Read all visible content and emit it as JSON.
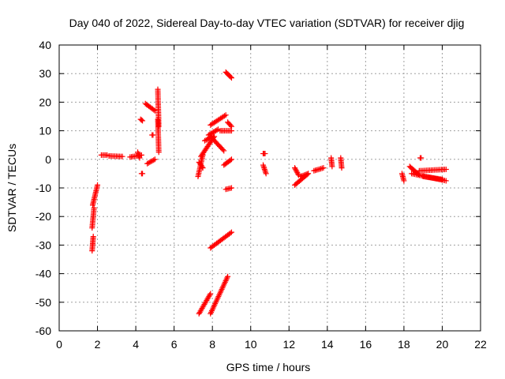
{
  "chart_data": {
    "type": "scatter",
    "title": "Day 040 of 2022, Sidereal Day-to-day VTEC variation (SDTVAR) for receiver djig",
    "xlabel": "GPS time / hours",
    "ylabel": "SDTVAR / TECUs",
    "xlim": [
      0,
      22
    ],
    "ylim": [
      -60,
      40
    ],
    "xticks": [
      0,
      2,
      4,
      6,
      8,
      10,
      12,
      14,
      16,
      18,
      20,
      22
    ],
    "yticks": [
      -60,
      -50,
      -40,
      -30,
      -20,
      -10,
      0,
      10,
      20,
      30,
      40
    ],
    "grid": true,
    "marker": "+",
    "color": "#ff0000",
    "series": [
      {
        "name": "SDTVAR",
        "segments": [
          {
            "x": [
              1.75,
              2.0
            ],
            "y": [
              -16,
              -9
            ]
          },
          {
            "x": [
              1.72,
              1.78
            ],
            "y": [
              -32,
              -27
            ]
          },
          {
            "x": [
              1.72,
              1.82
            ],
            "y": [
              -24,
              -17
            ]
          },
          {
            "x": [
              2.2,
              2.5
            ],
            "y": [
              1.5,
              1.5
            ]
          },
          {
            "x": [
              2.6,
              3.3
            ],
            "y": [
              1.2,
              1.0
            ]
          },
          {
            "x": [
              3.7,
              4.3
            ],
            "y": [
              0.8,
              1.5
            ]
          },
          {
            "x": [
              4.1,
              4.2
            ],
            "y": [
              2.5,
              0.5
            ]
          },
          {
            "x": [
              4.25,
              4.35
            ],
            "y": [
              14,
              13.5
            ]
          },
          {
            "x": [
              4.3,
              4.35
            ],
            "y": [
              -5,
              -5
            ]
          },
          {
            "x": [
              4.5,
              5.0
            ],
            "y": [
              19.5,
              17
            ]
          },
          {
            "x": [
              4.6,
              5.0
            ],
            "y": [
              -1.5,
              0
            ]
          },
          {
            "x": [
              4.85,
              4.9
            ],
            "y": [
              8.5,
              8.5
            ]
          },
          {
            "x": [
              5.15,
              5.2
            ],
            "y": [
              24.5,
              11.5
            ]
          },
          {
            "x": [
              5.15,
              5.2
            ],
            "y": [
              14,
              2.5
            ]
          },
          {
            "x": [
              7.25,
              7.5
            ],
            "y": [
              -6,
              1.5
            ]
          },
          {
            "x": [
              7.3,
              7.5
            ],
            "y": [
              -1,
              -3
            ]
          },
          {
            "x": [
              7.4,
              8.1
            ],
            "y": [
              1,
              8
            ]
          },
          {
            "x": [
              7.6,
              8.0
            ],
            "y": [
              6.5,
              8
            ]
          },
          {
            "x": [
              7.9,
              8.6
            ],
            "y": [
              8,
              3
            ]
          },
          {
            "x": [
              7.8,
              8.3
            ],
            "y": [
              8.5,
              10.5
            ]
          },
          {
            "x": [
              7.9,
              8.7
            ],
            "y": [
              12,
              15.5
            ]
          },
          {
            "x": [
              8.4,
              9.0
            ],
            "y": [
              10,
              10
            ]
          },
          {
            "x": [
              8.8,
              9.0
            ],
            "y": [
              13,
              11.5
            ]
          },
          {
            "x": [
              8.7,
              9.0
            ],
            "y": [
              30.5,
              28.5
            ]
          },
          {
            "x": [
              8.6,
              9.0
            ],
            "y": [
              -2,
              0
            ]
          },
          {
            "x": [
              8.7,
              9.0
            ],
            "y": [
              -10.5,
              -10
            ]
          },
          {
            "x": [
              7.9,
              9.0
            ],
            "y": [
              -31,
              -25.5
            ]
          },
          {
            "x": [
              7.3,
              7.9
            ],
            "y": [
              -54,
              -47
            ]
          },
          {
            "x": [
              7.9,
              8.8
            ],
            "y": [
              -54,
              -41
            ]
          },
          {
            "x": [
              10.65,
              10.75
            ],
            "y": [
              2,
              2
            ]
          },
          {
            "x": [
              10.65,
              10.8
            ],
            "y": [
              -2,
              -5
            ]
          },
          {
            "x": [
              12.3,
              12.5
            ],
            "y": [
              -3,
              -5.5
            ]
          },
          {
            "x": [
              12.3,
              13.0
            ],
            "y": [
              -9,
              -5
            ]
          },
          {
            "x": [
              12.6,
              13.0
            ],
            "y": [
              -6,
              -5
            ]
          },
          {
            "x": [
              13.3,
              13.8
            ],
            "y": [
              -4,
              -3
            ]
          },
          {
            "x": [
              14.2,
              14.25
            ],
            "y": [
              0.5,
              -2.5
            ]
          },
          {
            "x": [
              14.7,
              14.75
            ],
            "y": [
              0.5,
              -3
            ]
          },
          {
            "x": [
              17.9,
              18.0
            ],
            "y": [
              -5,
              -7.5
            ]
          },
          {
            "x": [
              18.3,
              18.8
            ],
            "y": [
              -2.5,
              -5.5
            ]
          },
          {
            "x": [
              18.4,
              20.2
            ],
            "y": [
              -5,
              -7.5
            ]
          },
          {
            "x": [
              18.8,
              20.2
            ],
            "y": [
              -4,
              -3.5
            ]
          },
          {
            "x": [
              18.85,
              18.9
            ],
            "y": [
              0.5,
              0.5
            ]
          },
          {
            "x": [
              19.0,
              20.0
            ],
            "y": [
              -6,
              -7
            ]
          }
        ]
      }
    ]
  }
}
